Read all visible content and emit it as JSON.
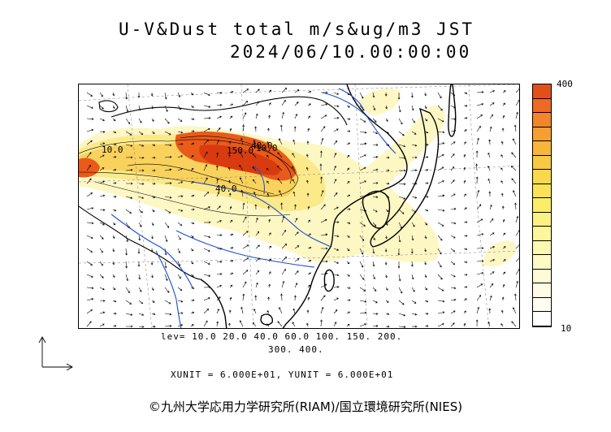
{
  "header": {
    "line1": "U-V&Dust total m/s&ug/m3 JST",
    "line2": "2024/06/10.00:00:00"
  },
  "map": {
    "contour_labels": [
      "10.0",
      "150.0",
      "40.0",
      "10.0",
      "40.0"
    ],
    "colors": {
      "coast": "#000000",
      "river": "#1a4fd6",
      "grid": "#7a7a7a",
      "arrow": "#000000",
      "dust_low": "#fdf7c4",
      "dust_mid": "#fbe98a",
      "dust_high": "#f6c23c",
      "dust_peak": "#ea5a1a",
      "dust_core": "#d93a10"
    }
  },
  "colorbar": {
    "max_label": "400",
    "min_label": "10",
    "colors": [
      "#e2501a",
      "#ec6a23",
      "#f2842b",
      "#f59f33",
      "#f7b53b",
      "#f8c943",
      "#f9d84b",
      "#fae356",
      "#fbec6a",
      "#fcf283",
      "#fdf69c",
      "#fdf8b2",
      "#fefac6",
      "#fefbd6",
      "#fefce4",
      "#fffdf0",
      "#ffffff"
    ]
  },
  "levels": {
    "line1": "lev= 10.0 20.0 40.0 60.0 100. 150. 200.",
    "line2": "300. 400."
  },
  "units": "XUNIT = 6.000E+01, YUNIT = 6.000E+01",
  "copyright": "©九州大学応用力学研究所(RIAM)/国立環境研究所(NIES)"
}
